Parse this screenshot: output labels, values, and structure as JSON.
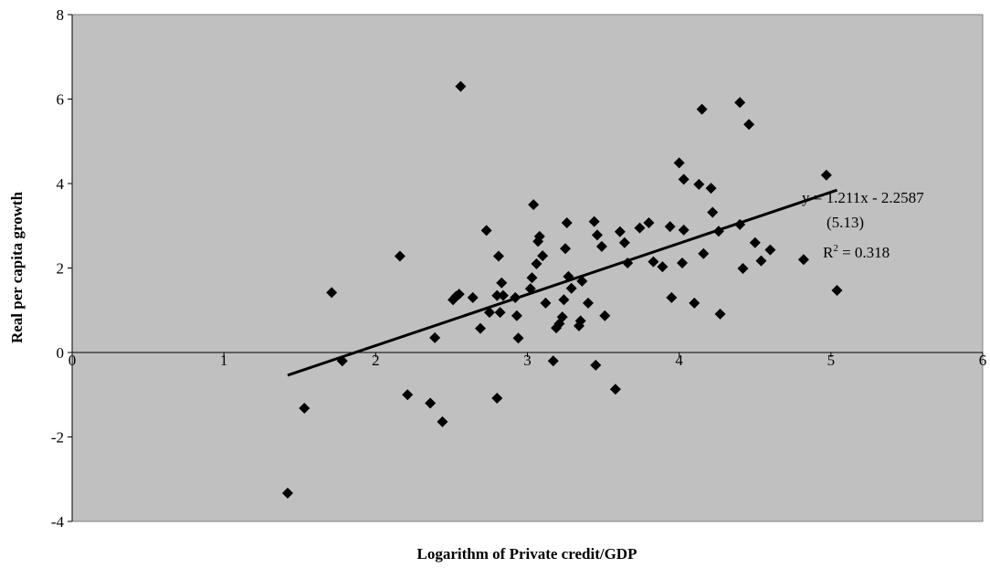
{
  "chart_data": {
    "type": "scatter",
    "title": "",
    "xlabel": "Logarithm of Private credit/GDP",
    "ylabel": "Real per capita growth",
    "xlim": [
      0,
      6
    ],
    "ylim": [
      -4,
      8
    ],
    "x_ticks": [
      "0",
      "1",
      "2",
      "3",
      "4",
      "5",
      "6"
    ],
    "y_ticks": [
      "-4",
      "-2",
      "0",
      "2",
      "4",
      "6",
      "8"
    ],
    "grid": false,
    "legend": "none",
    "plot_background": "#c0c0c0",
    "marker_color": "#000000",
    "series": [
      {
        "marker": "diamond",
        "points": [
          [
            1.42,
            -3.33
          ],
          [
            1.53,
            -1.32
          ],
          [
            1.71,
            1.42
          ],
          [
            1.78,
            -0.2
          ],
          [
            2.16,
            2.28
          ],
          [
            2.21,
            -1.0
          ],
          [
            2.36,
            -1.2
          ],
          [
            2.39,
            0.35
          ],
          [
            2.44,
            -1.64
          ],
          [
            2.51,
            1.25
          ],
          [
            2.53,
            1.33
          ],
          [
            2.55,
            1.38
          ],
          [
            2.56,
            6.3
          ],
          [
            2.64,
            1.3
          ],
          [
            2.69,
            0.57
          ],
          [
            2.73,
            2.89
          ],
          [
            2.75,
            0.95
          ],
          [
            2.8,
            -1.08
          ],
          [
            2.8,
            1.35
          ],
          [
            2.81,
            2.28
          ],
          [
            2.82,
            0.95
          ],
          [
            2.83,
            1.65
          ],
          [
            2.84,
            1.35
          ],
          [
            2.92,
            1.3
          ],
          [
            2.93,
            0.87
          ],
          [
            2.94,
            0.34
          ],
          [
            3.02,
            1.51
          ],
          [
            3.03,
            1.77
          ],
          [
            3.04,
            3.5
          ],
          [
            3.06,
            2.1
          ],
          [
            3.07,
            2.63
          ],
          [
            3.08,
            2.75
          ],
          [
            3.1,
            2.29
          ],
          [
            3.12,
            1.17
          ],
          [
            3.17,
            -0.2
          ],
          [
            3.19,
            0.58
          ],
          [
            3.21,
            0.68
          ],
          [
            3.23,
            0.84
          ],
          [
            3.24,
            1.25
          ],
          [
            3.25,
            2.46
          ],
          [
            3.26,
            3.07
          ],
          [
            3.27,
            1.8
          ],
          [
            3.29,
            1.52
          ],
          [
            3.34,
            0.63
          ],
          [
            3.35,
            0.75
          ],
          [
            3.36,
            1.69
          ],
          [
            3.4,
            1.17
          ],
          [
            3.44,
            3.1
          ],
          [
            3.45,
            -0.3
          ],
          [
            3.46,
            2.78
          ],
          [
            3.49,
            2.51
          ],
          [
            3.51,
            0.87
          ],
          [
            3.58,
            -0.87
          ],
          [
            3.61,
            2.86
          ],
          [
            3.64,
            2.6
          ],
          [
            3.66,
            2.12
          ],
          [
            3.74,
            2.95
          ],
          [
            3.8,
            3.07
          ],
          [
            3.83,
            2.15
          ],
          [
            3.89,
            2.03
          ],
          [
            3.94,
            2.98
          ],
          [
            3.95,
            1.3
          ],
          [
            4.0,
            4.49
          ],
          [
            4.02,
            2.12
          ],
          [
            4.03,
            2.9
          ],
          [
            4.03,
            4.1
          ],
          [
            4.1,
            1.17
          ],
          [
            4.13,
            3.98
          ],
          [
            4.15,
            5.76
          ],
          [
            4.16,
            2.34
          ],
          [
            4.21,
            3.89
          ],
          [
            4.22,
            3.32
          ],
          [
            4.26,
            2.87
          ],
          [
            4.27,
            0.91
          ],
          [
            4.4,
            5.92
          ],
          [
            4.4,
            3.03
          ],
          [
            4.42,
            1.99
          ],
          [
            4.46,
            5.4
          ],
          [
            4.5,
            2.6
          ],
          [
            4.54,
            2.17
          ],
          [
            4.6,
            2.43
          ],
          [
            4.82,
            2.2
          ],
          [
            4.97,
            4.2
          ],
          [
            5.04,
            1.47
          ]
        ]
      }
    ],
    "trendline": {
      "slope": 1.211,
      "intercept": -2.2587,
      "x_range": [
        1.42,
        5.04
      ]
    },
    "annotations": {
      "equation": "y = 1.211x - 2.2587",
      "t_stat": "(5.13)",
      "r2_prefix": "R",
      "r2_exp": "2",
      "r2_value": " = 0.318"
    }
  }
}
